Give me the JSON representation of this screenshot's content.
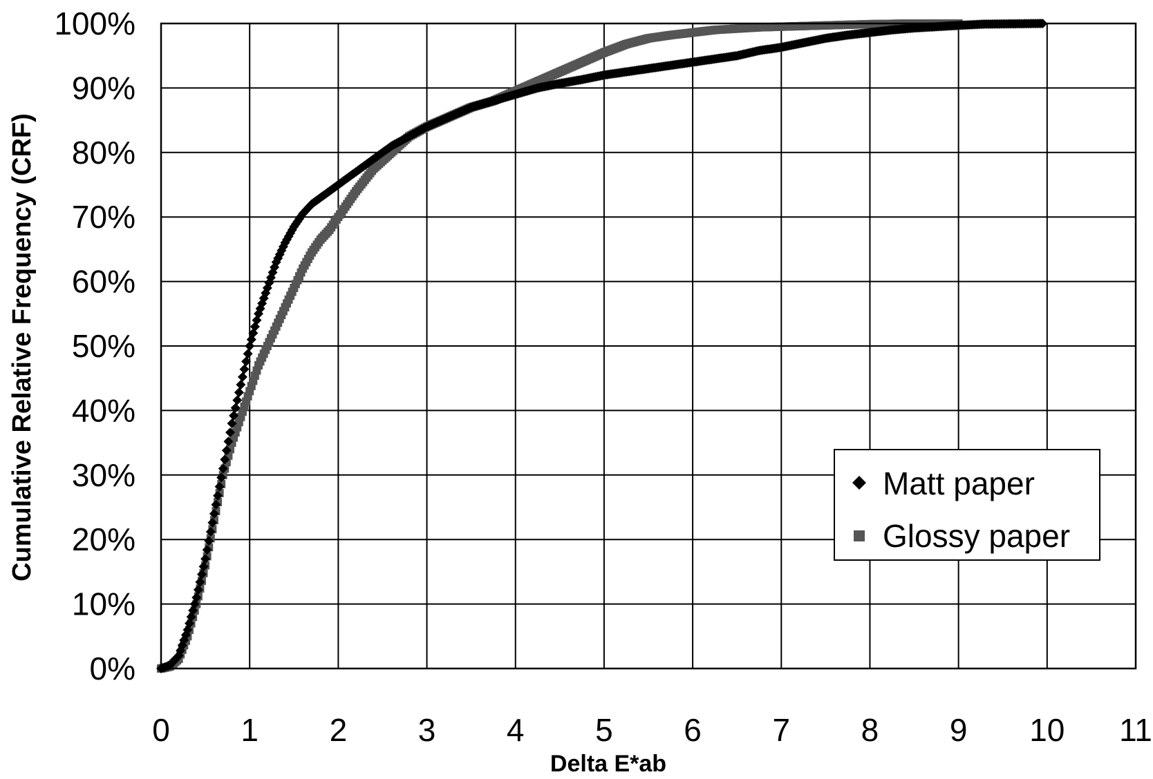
{
  "chart_data": {
    "type": "scatter",
    "title": "",
    "xlabel": "Delta E*ab",
    "ylabel": "Cumulative Relative Frequency (CRF)",
    "xlim": [
      0,
      11
    ],
    "ylim": [
      0,
      100
    ],
    "x_ticks": [
      "0",
      "1",
      "2",
      "3",
      "4",
      "5",
      "6",
      "7",
      "8",
      "9",
      "10",
      "11"
    ],
    "y_ticks": [
      "0%",
      "10%",
      "20%",
      "30%",
      "40%",
      "50%",
      "60%",
      "70%",
      "80%",
      "90%",
      "100%"
    ],
    "grid": true,
    "legend_position": "bottom-right",
    "series": [
      {
        "name": "Matt paper",
        "marker": "diamond",
        "color": "#000000",
        "x": [
          0.0,
          0.1,
          0.2,
          0.3,
          0.4,
          0.5,
          0.6,
          0.7,
          0.8,
          0.9,
          1.0,
          1.1,
          1.2,
          1.3,
          1.4,
          1.5,
          1.6,
          1.7,
          1.8,
          1.9,
          2.0,
          2.2,
          2.4,
          2.6,
          2.8,
          3.0,
          3.25,
          3.5,
          3.75,
          4.0,
          4.25,
          4.5,
          4.75,
          5.0,
          5.25,
          5.5,
          5.75,
          6.0,
          6.25,
          6.5,
          6.75,
          7.0,
          7.25,
          7.5,
          7.75,
          8.0,
          8.25,
          8.5,
          8.75,
          9.0,
          9.3,
          9.95
        ],
        "y": [
          0,
          0.5,
          2,
          6,
          11,
          17,
          24,
          31,
          38,
          44,
          50,
          55,
          59,
          63,
          66,
          68.5,
          70.5,
          72,
          73,
          74,
          75,
          77,
          79,
          81,
          82.5,
          84,
          85.5,
          87,
          88,
          89,
          90,
          90.7,
          91.3,
          92,
          92.5,
          93,
          93.5,
          94,
          94.5,
          95,
          95.8,
          96.3,
          97,
          97.7,
          98.2,
          98.6,
          99,
          99.3,
          99.5,
          99.7,
          99.9,
          100
        ]
      },
      {
        "name": "Glossy paper",
        "marker": "square",
        "color": "#555555",
        "x": [
          0.0,
          0.1,
          0.2,
          0.3,
          0.4,
          0.5,
          0.6,
          0.7,
          0.8,
          0.9,
          1.0,
          1.1,
          1.2,
          1.3,
          1.4,
          1.5,
          1.6,
          1.7,
          1.8,
          1.9,
          2.0,
          2.2,
          2.4,
          2.6,
          2.8,
          3.0,
          3.25,
          3.5,
          3.75,
          4.0,
          4.25,
          4.5,
          4.75,
          5.0,
          5.25,
          5.5,
          5.75,
          6.0,
          6.25,
          6.5,
          6.75,
          7.0,
          7.25,
          7.5,
          7.75,
          8.0,
          8.5,
          9.0
        ],
        "y": [
          0,
          0.3,
          1.5,
          5,
          10,
          16,
          23,
          30,
          35,
          39,
          43,
          47,
          50,
          53,
          56,
          59,
          62,
          64.5,
          66.5,
          68,
          70,
          74,
          77.5,
          80,
          82.5,
          84,
          85.5,
          87,
          88,
          89.5,
          91,
          92.5,
          94,
          95.5,
          96.8,
          97.7,
          98.2,
          98.6,
          99,
          99.2,
          99.4,
          99.5,
          99.6,
          99.7,
          99.8,
          99.9,
          100,
          100
        ]
      }
    ]
  }
}
